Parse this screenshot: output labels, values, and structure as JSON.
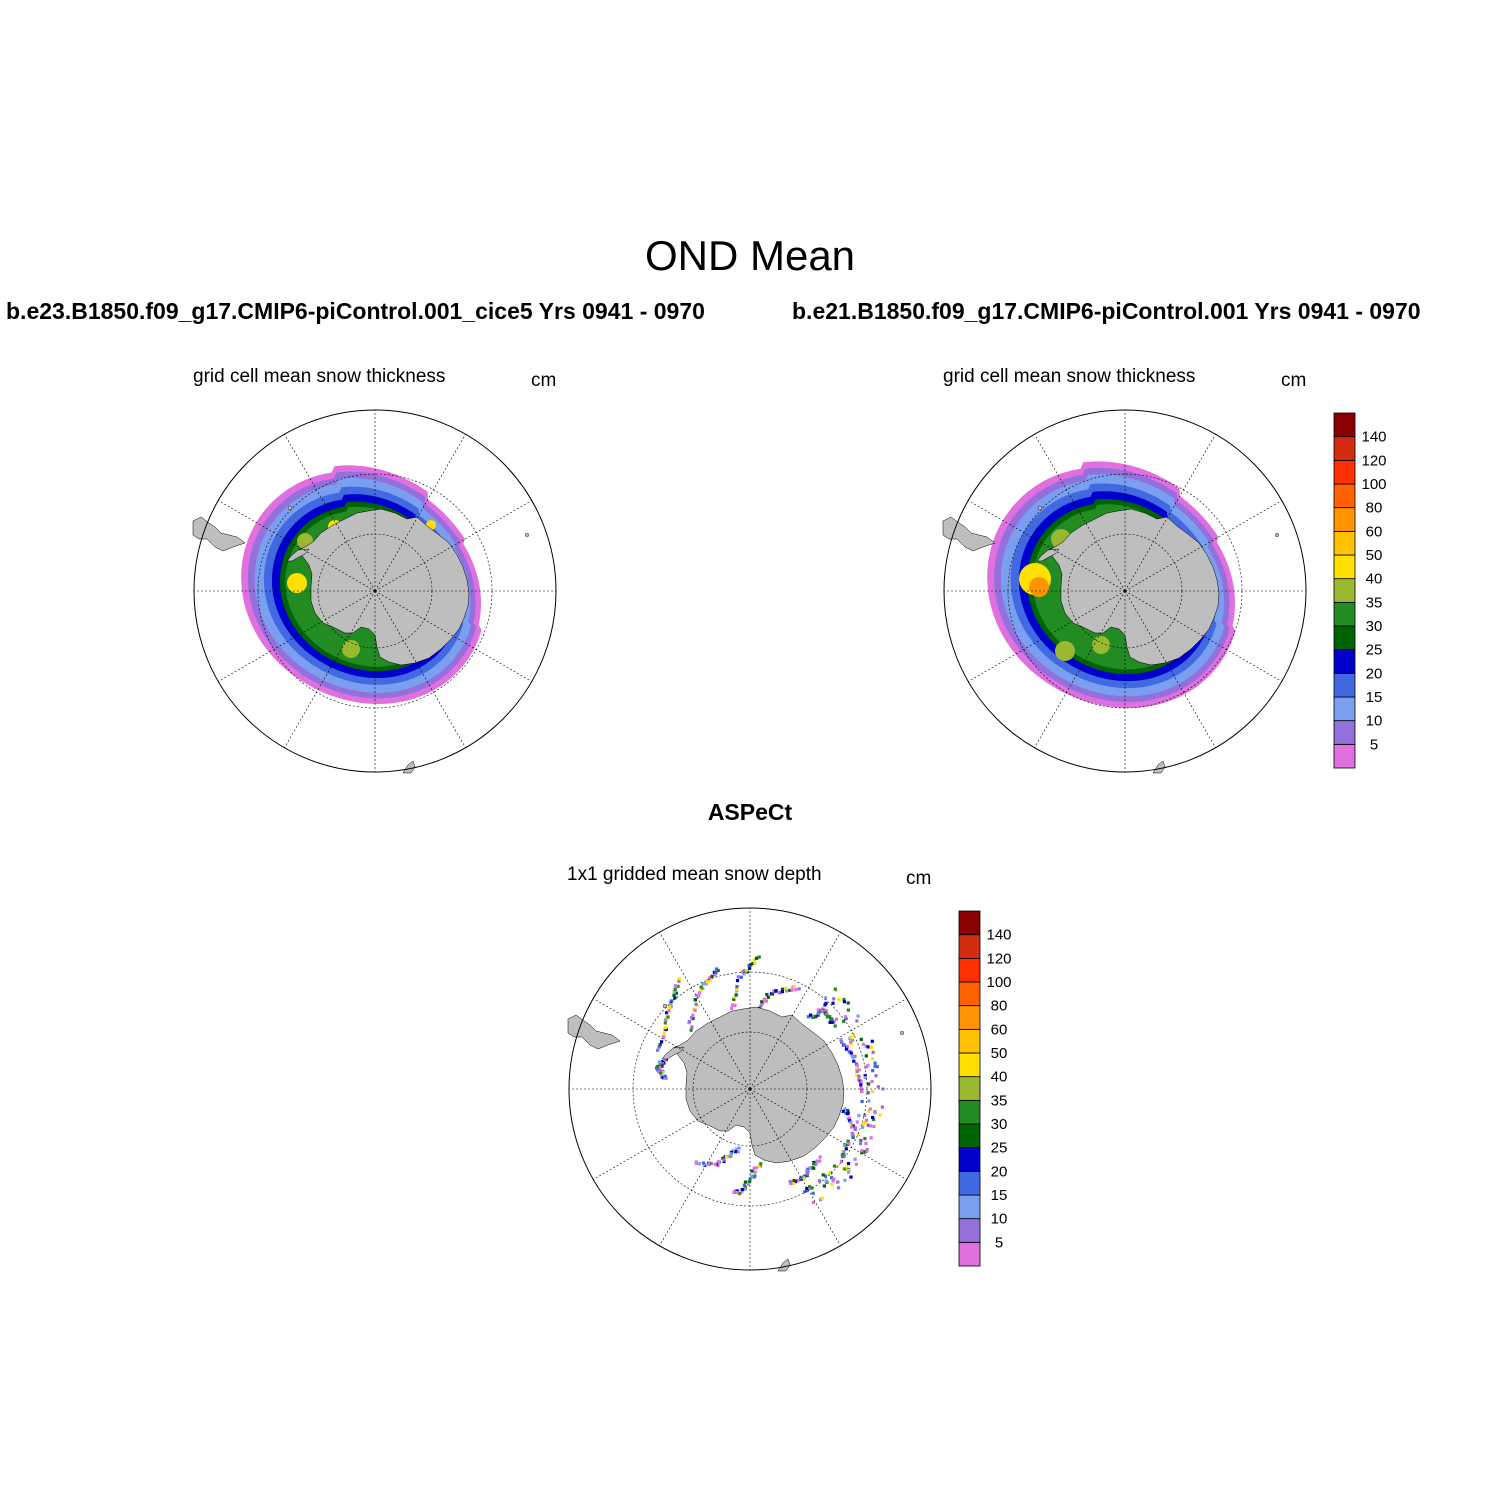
{
  "figure": {
    "title": "OND Mean"
  },
  "panels": [
    {
      "case": "b.e23.B1850.f09_g17.CMIP6-piControl.001_cice5  Yrs 0941 - 0970",
      "subtitle": "grid cell mean snow thickness",
      "units": "cm"
    },
    {
      "case": "b.e21.B1850.f09_g17.CMIP6-piControl.001  Yrs 0941 - 0970",
      "subtitle": "grid cell mean snow thickness",
      "units": "cm"
    },
    {
      "case": "ASPeCt",
      "subtitle": "1x1 gridded mean snow depth",
      "units": "cm"
    }
  ],
  "colorbar": {
    "labels": [
      "5",
      "10",
      "15",
      "20",
      "25",
      "30",
      "35",
      "40",
      "50",
      "60",
      "80",
      "100",
      "120",
      "140"
    ],
    "colors": [
      "#e070e0",
      "#9370db",
      "#7b9ff0",
      "#4169e1",
      "#0000cd",
      "#006400",
      "#228b22",
      "#9ab830",
      "#ffe000",
      "#ffc200",
      "#ff9400",
      "#ff6000",
      "#ff3000",
      "#d42c10",
      "#8b0000"
    ]
  },
  "colors": {
    "land": "#bebebe",
    "ice_edge": "#e070e0"
  }
}
